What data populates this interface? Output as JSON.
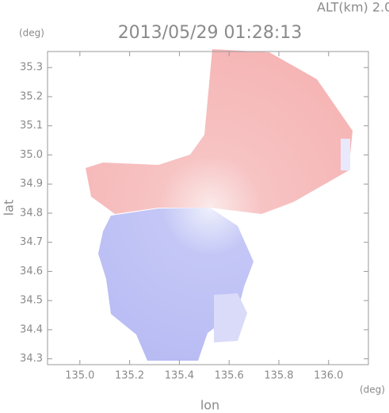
{
  "chart_data": {
    "type": "radar-map",
    "title": "2013/05/29 01:28:13",
    "subtitle": "ALT(km) 2.0",
    "x_label": "lon",
    "x_unit": "(deg)",
    "y_label": "lat",
    "y_unit": "(deg)",
    "xlim": [
      134.87,
      136.16
    ],
    "xticks": [
      {
        "value": 135,
        "label": "135.0"
      },
      135.2,
      135.4,
      135.6,
      135.8,
      {
        "value": 136,
        "label": "136.0"
      }
    ],
    "ylim": [
      34.28,
      35.355
    ],
    "yticks": [
      34.3,
      34.4,
      34.5,
      34.6,
      34.7,
      34.8,
      34.9,
      {
        "value": 35,
        "label": "35.0"
      },
      35.1,
      35.2,
      35.3
    ]
  }
}
